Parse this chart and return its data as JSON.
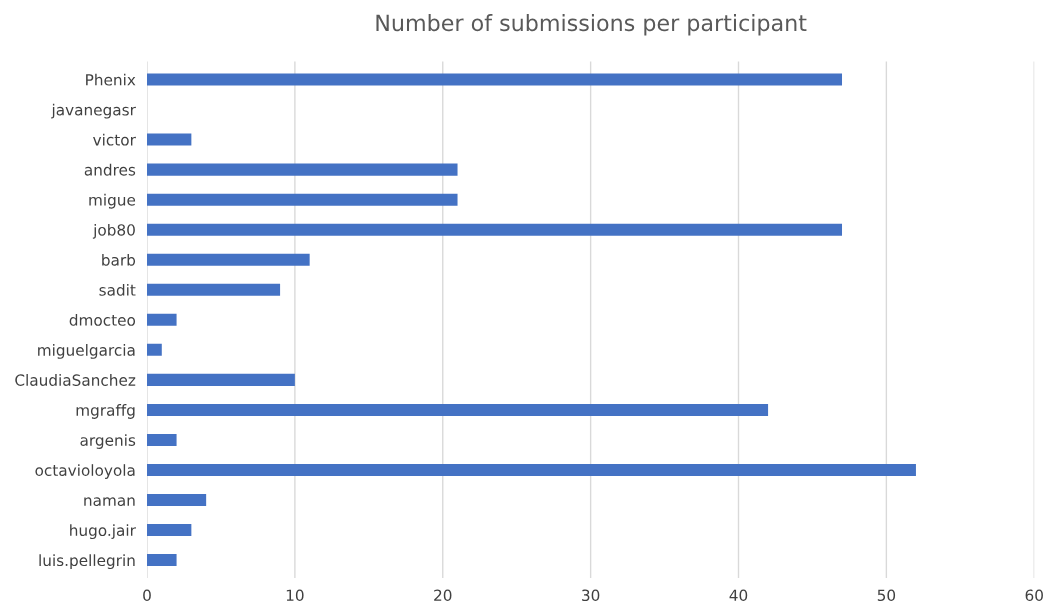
{
  "chart_data": {
    "type": "bar",
    "orientation": "horizontal",
    "title": "Number of submissions per participant",
    "categories": [
      "Phenix",
      "javanegasr",
      "victor",
      "andres",
      "migue",
      "job80",
      "barb",
      "sadit",
      "dmocteo",
      "miguelgarcia",
      "ClaudiaSanchez",
      "mgraffg",
      "argenis",
      "octavioloyola",
      "naman",
      "hugo.jair",
      "luis.pellegrin"
    ],
    "values": [
      47,
      0,
      3,
      21,
      21,
      47,
      11,
      9,
      2,
      1,
      10,
      42,
      2,
      52,
      4,
      3,
      2
    ],
    "color": "#4472c4",
    "xlim": [
      0,
      60
    ],
    "xticks": [
      0,
      10,
      20,
      30,
      40,
      50,
      60
    ],
    "grid": "x"
  }
}
